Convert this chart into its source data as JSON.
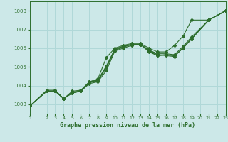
{
  "xlabel": "Graphe pression niveau de la mer (hPa)",
  "ylim": [
    1002.5,
    1008.5
  ],
  "xlim": [
    0,
    23
  ],
  "yticks": [
    1003,
    1004,
    1005,
    1006,
    1007,
    1008
  ],
  "xticks": [
    0,
    2,
    3,
    4,
    5,
    6,
    7,
    8,
    9,
    10,
    11,
    12,
    13,
    14,
    15,
    16,
    17,
    18,
    19,
    20,
    21,
    22,
    23
  ],
  "bg_color": "#cce8e8",
  "line_color": "#2d6e2d",
  "grid_color": "#b0d8d8",
  "series_x": [
    0,
    2,
    3,
    4,
    5,
    6,
    7,
    8,
    9,
    10,
    11,
    12,
    13,
    14,
    15,
    16,
    17,
    18,
    19,
    21,
    23
  ],
  "lines": [
    [
      1002.9,
      1003.7,
      1003.7,
      1003.3,
      1003.6,
      1003.7,
      1004.1,
      1004.2,
      1004.8,
      1005.85,
      1006.0,
      1006.15,
      1006.2,
      1005.9,
      1005.65,
      1005.6,
      1005.55,
      1006.05,
      1006.5,
      1007.5,
      1008.0
    ],
    [
      1002.9,
      1003.7,
      1003.7,
      1003.3,
      1003.6,
      1003.7,
      1004.15,
      1004.25,
      1004.95,
      1005.9,
      1006.05,
      1006.2,
      1006.2,
      1005.85,
      1005.6,
      1005.65,
      1005.6,
      1006.0,
      1006.5,
      1007.5,
      1008.0
    ],
    [
      1002.9,
      1003.7,
      1003.7,
      1003.3,
      1003.65,
      1003.7,
      1004.15,
      1004.3,
      1005.0,
      1005.95,
      1006.1,
      1006.2,
      1006.2,
      1005.8,
      1005.6,
      1005.65,
      1005.6,
      1006.0,
      1006.5,
      1007.5,
      1008.0
    ],
    [
      1002.9,
      1003.7,
      1003.7,
      1003.3,
      1003.65,
      1003.7,
      1004.2,
      1004.3,
      1005.05,
      1005.95,
      1006.1,
      1006.2,
      1006.2,
      1005.9,
      1005.7,
      1005.7,
      1005.65,
      1006.1,
      1006.6,
      1007.5,
      1008.0
    ],
    [
      1002.9,
      1003.75,
      1003.75,
      1003.3,
      1003.7,
      1003.75,
      1004.2,
      1004.35,
      1005.5,
      1006.0,
      1006.15,
      1006.25,
      1006.25,
      1006.0,
      1005.8,
      1005.8,
      1006.15,
      1006.65,
      1007.5,
      1007.5,
      1008.0
    ]
  ]
}
